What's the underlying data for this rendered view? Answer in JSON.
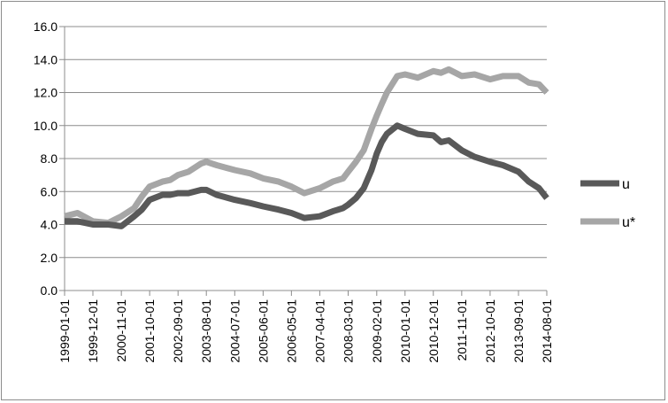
{
  "chart_data": {
    "type": "line",
    "title": "",
    "xlabel": "",
    "ylabel": "",
    "ylim": [
      0,
      16
    ],
    "y_ticks": [
      "0.0",
      "2.0",
      "4.0",
      "6.0",
      "8.0",
      "10.0",
      "12.0",
      "14.0",
      "16.0"
    ],
    "x_tick_labels": [
      "1999-01-01",
      "1999-12-01",
      "2000-11-01",
      "2001-10-01",
      "2002-09-01",
      "2003-08-01",
      "2004-07-01",
      "2005-06-01",
      "2006-05-01",
      "2007-04-01",
      "2008-03-01",
      "2009-02-01",
      "2010-01-01",
      "2010-12-01",
      "2011-11-01",
      "2012-10-01",
      "2013-09-01",
      "2014-08-01"
    ],
    "x_start": "1999-01-01",
    "x_end": "2014-08-01",
    "grid": "horizontal",
    "legend_position": "right",
    "series": [
      {
        "name": "u",
        "color": "#595959",
        "points": [
          [
            "1999-01-01",
            4.2
          ],
          [
            "1999-06-01",
            4.2
          ],
          [
            "1999-12-01",
            4.0
          ],
          [
            "2000-06-01",
            4.0
          ],
          [
            "2000-11-01",
            3.9
          ],
          [
            "2001-04-01",
            4.5
          ],
          [
            "2001-07-01",
            4.9
          ],
          [
            "2001-10-01",
            5.5
          ],
          [
            "2002-03-01",
            5.8
          ],
          [
            "2002-06-01",
            5.8
          ],
          [
            "2002-09-01",
            5.9
          ],
          [
            "2003-01-01",
            5.9
          ],
          [
            "2003-06-01",
            6.1
          ],
          [
            "2003-08-01",
            6.1
          ],
          [
            "2003-12-01",
            5.8
          ],
          [
            "2004-07-01",
            5.5
          ],
          [
            "2005-01-01",
            5.3
          ],
          [
            "2005-06-01",
            5.1
          ],
          [
            "2005-12-01",
            4.9
          ],
          [
            "2006-05-01",
            4.7
          ],
          [
            "2006-10-01",
            4.4
          ],
          [
            "2007-04-01",
            4.5
          ],
          [
            "2007-09-01",
            4.8
          ],
          [
            "2008-01-01",
            5.0
          ],
          [
            "2008-03-01",
            5.2
          ],
          [
            "2008-06-01",
            5.6
          ],
          [
            "2008-09-01",
            6.2
          ],
          [
            "2008-12-01",
            7.3
          ],
          [
            "2009-02-01",
            8.3
          ],
          [
            "2009-04-01",
            9.0
          ],
          [
            "2009-06-01",
            9.5
          ],
          [
            "2009-10-01",
            10.0
          ],
          [
            "2010-01-01",
            9.8
          ],
          [
            "2010-06-01",
            9.5
          ],
          [
            "2010-12-01",
            9.4
          ],
          [
            "2011-03-01",
            9.0
          ],
          [
            "2011-06-01",
            9.1
          ],
          [
            "2011-11-01",
            8.5
          ],
          [
            "2012-04-01",
            8.1
          ],
          [
            "2012-10-01",
            7.8
          ],
          [
            "2013-03-01",
            7.6
          ],
          [
            "2013-09-01",
            7.2
          ],
          [
            "2014-01-01",
            6.6
          ],
          [
            "2014-05-01",
            6.2
          ],
          [
            "2014-08-01",
            5.6
          ]
        ]
      },
      {
        "name": "u*",
        "color": "#a6a6a6",
        "points": [
          [
            "1999-01-01",
            4.5
          ],
          [
            "1999-06-01",
            4.7
          ],
          [
            "1999-12-01",
            4.2
          ],
          [
            "2000-06-01",
            4.1
          ],
          [
            "2000-11-01",
            4.5
          ],
          [
            "2001-04-01",
            5.0
          ],
          [
            "2001-07-01",
            5.7
          ],
          [
            "2001-10-01",
            6.3
          ],
          [
            "2002-03-01",
            6.6
          ],
          [
            "2002-06-01",
            6.7
          ],
          [
            "2002-09-01",
            7.0
          ],
          [
            "2003-01-01",
            7.2
          ],
          [
            "2003-06-01",
            7.7
          ],
          [
            "2003-08-01",
            7.8
          ],
          [
            "2003-12-01",
            7.6
          ],
          [
            "2004-07-01",
            7.3
          ],
          [
            "2005-01-01",
            7.1
          ],
          [
            "2005-06-01",
            6.8
          ],
          [
            "2005-12-01",
            6.6
          ],
          [
            "2006-05-01",
            6.3
          ],
          [
            "2006-10-01",
            5.9
          ],
          [
            "2007-04-01",
            6.2
          ],
          [
            "2007-09-01",
            6.6
          ],
          [
            "2008-01-01",
            6.8
          ],
          [
            "2008-03-01",
            7.2
          ],
          [
            "2008-06-01",
            7.8
          ],
          [
            "2008-09-01",
            8.5
          ],
          [
            "2008-12-01",
            9.8
          ],
          [
            "2009-02-01",
            10.6
          ],
          [
            "2009-04-01",
            11.3
          ],
          [
            "2009-06-01",
            12.0
          ],
          [
            "2009-10-01",
            13.0
          ],
          [
            "2010-01-01",
            13.1
          ],
          [
            "2010-06-01",
            12.9
          ],
          [
            "2010-12-01",
            13.3
          ],
          [
            "2011-03-01",
            13.2
          ],
          [
            "2011-06-01",
            13.4
          ],
          [
            "2011-11-01",
            13.0
          ],
          [
            "2012-04-01",
            13.1
          ],
          [
            "2012-10-01",
            12.8
          ],
          [
            "2013-03-01",
            13.0
          ],
          [
            "2013-09-01",
            13.0
          ],
          [
            "2014-01-01",
            12.6
          ],
          [
            "2014-05-01",
            12.5
          ],
          [
            "2014-08-01",
            12.0
          ]
        ]
      }
    ]
  }
}
